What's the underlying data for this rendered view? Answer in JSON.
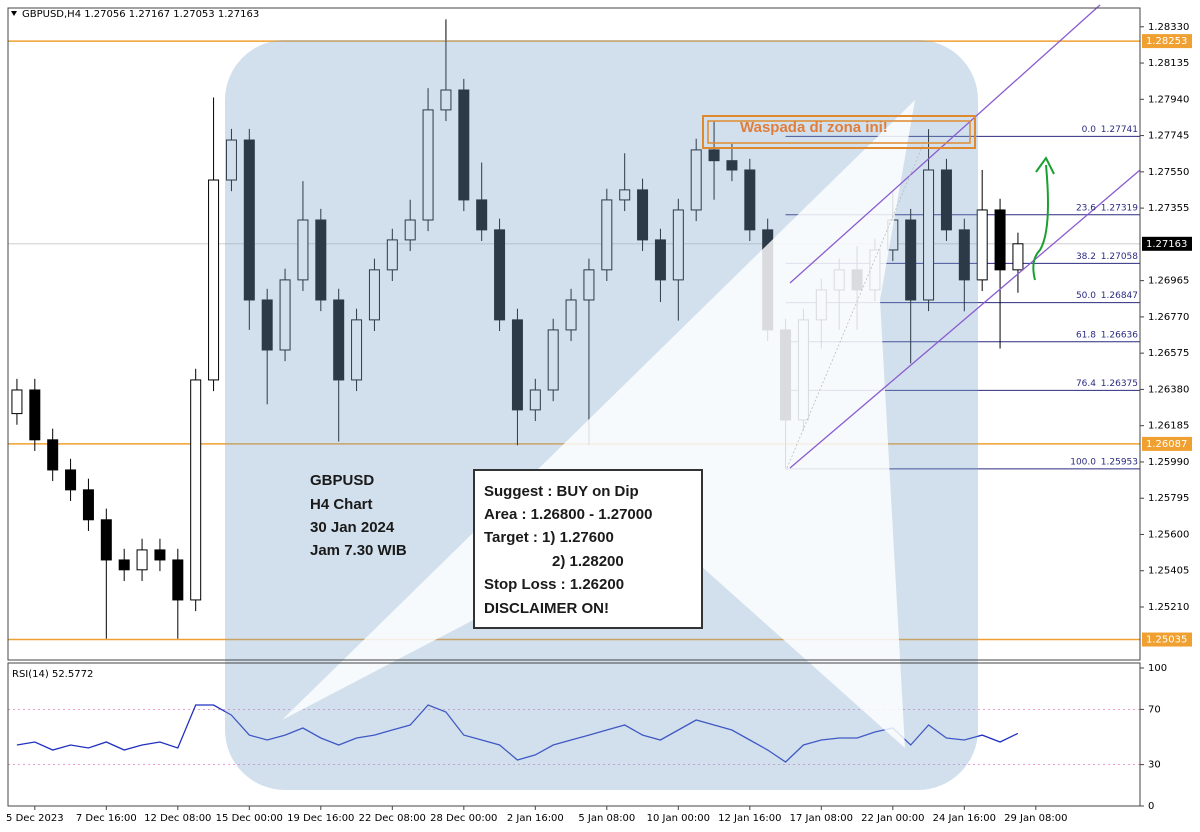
{
  "chart_data": {
    "type": "candlestick",
    "header": "GBPUSD,H4 1.27056 1.27167 1.27053 1.27163",
    "categories": [
      null,
      "5 Dec 2023",
      null,
      null,
      null,
      "7 Dec 16:00",
      null,
      null,
      null,
      "12 Dec 08:00",
      null,
      null,
      null,
      "15 Dec 00:00",
      null,
      null,
      null,
      "19 Dec 16:00",
      null,
      null,
      null,
      "22 Dec 08:00",
      null,
      null,
      null,
      "28 Dec 00:00",
      null,
      null,
      null,
      "2 Jan 16:00",
      null,
      null,
      null,
      "5 Jan 08:00",
      null,
      null,
      null,
      "10 Jan 00:00",
      null,
      null,
      null,
      "12 Jan 16:00",
      null,
      null,
      null,
      "17 Jan 08:00",
      null,
      null,
      null,
      "22 Jan 00:00",
      null,
      null,
      null,
      "24 Jan 16:00",
      null,
      null,
      null,
      "29 Jan 08:00"
    ],
    "open": [
      1.2625,
      1.26377,
      1.26109,
      1.25947,
      1.2584,
      1.25679,
      1.25463,
      1.2541,
      1.25517,
      1.25463,
      1.25248,
      1.26431,
      1.27506,
      1.27721,
      1.26861,
      1.26592,
      1.26969,
      1.27291,
      1.26861,
      1.26431,
      1.26754,
      1.27023,
      1.27184,
      1.27291,
      1.27883,
      1.2799,
      1.27399,
      1.27238,
      1.26754,
      1.2627,
      1.26377,
      1.267,
      1.26861,
      1.27023,
      1.27399,
      1.27453,
      1.27184,
      1.26969,
      1.27345,
      1.27668,
      1.2761,
      1.2756,
      1.27238,
      1.267,
      1.26216,
      1.26754,
      1.26915,
      1.27023,
      1.26915,
      1.2713,
      1.27291,
      1.26861,
      1.2756,
      1.27238,
      1.26969,
      1.27345,
      1.27023,
      null
    ],
    "high": [
      1.26437,
      1.26437,
      1.26169,
      1.26007,
      1.259,
      1.25739,
      1.25523,
      1.25577,
      1.25577,
      1.25523,
      1.26491,
      1.2795,
      1.27781,
      1.27781,
      1.26921,
      1.27029,
      1.275,
      1.27351,
      1.26921,
      1.26814,
      1.27083,
      1.27244,
      1.274,
      1.28,
      1.2837,
      1.2805,
      1.276,
      1.27298,
      1.26814,
      1.26437,
      1.2676,
      1.26921,
      1.27083,
      1.27459,
      1.2765,
      1.27513,
      1.27244,
      1.27405,
      1.27728,
      1.2782,
      1.277,
      1.2762,
      1.27298,
      1.2676,
      1.26814,
      1.26975,
      1.27083,
      1.2715,
      1.2719,
      1.2745,
      1.27351,
      1.2778,
      1.2762,
      1.27298,
      1.2756,
      1.27405,
      1.27223,
      null
    ],
    "low": [
      1.2619,
      1.26049,
      1.25887,
      1.2578,
      1.25619,
      1.2504,
      1.2535,
      1.2535,
      1.25403,
      1.2504,
      1.25188,
      1.26371,
      1.27446,
      1.267,
      1.263,
      1.26532,
      1.26909,
      1.26801,
      1.261,
      1.26371,
      1.26694,
      1.26963,
      1.27124,
      1.27231,
      1.27823,
      1.27339,
      1.27178,
      1.26694,
      1.2608,
      1.2621,
      1.26317,
      1.2664,
      1.2608,
      1.26963,
      1.27339,
      1.27124,
      1.2685,
      1.2675,
      1.27285,
      1.274,
      1.275,
      1.27178,
      1.2664,
      1.25953,
      1.26156,
      1.266,
      1.267,
      1.267,
      1.26855,
      1.2707,
      1.2652,
      1.26801,
      1.27178,
      1.268,
      1.26909,
      1.266,
      1.269,
      null
    ],
    "close": [
      1.26377,
      1.26109,
      1.25947,
      1.2584,
      1.25679,
      1.25463,
      1.2541,
      1.25517,
      1.25463,
      1.25248,
      1.26431,
      1.27506,
      1.27721,
      1.26861,
      1.26592,
      1.26969,
      1.27291,
      1.26861,
      1.26431,
      1.26754,
      1.27023,
      1.27184,
      1.27291,
      1.27883,
      1.2799,
      1.27399,
      1.27238,
      1.26754,
      1.2627,
      1.26377,
      1.267,
      1.26861,
      1.27023,
      1.27399,
      1.27453,
      1.27184,
      1.26969,
      1.27345,
      1.27668,
      1.2761,
      1.2756,
      1.27238,
      1.267,
      1.26216,
      1.26754,
      1.26915,
      1.27023,
      1.26915,
      1.2713,
      1.27291,
      1.26861,
      1.2756,
      1.27238,
      1.26969,
      1.27345,
      1.27023,
      1.27163,
      null
    ],
    "up_color": "#ffffff",
    "down_color": "#000000",
    "ylim": [
      1.24925,
      1.28431
    ],
    "yticks": [
      {
        "value": 1.2833,
        "label": "1.28330"
      },
      1.28135,
      {
        "value": 1.2794,
        "label": "1.27940"
      },
      1.27745,
      {
        "value": 1.2755,
        "label": "1.27550"
      },
      1.27355,
      1.26965,
      {
        "value": 1.2677,
        "label": "1.26770"
      },
      1.26575,
      {
        "value": 1.2638,
        "label": "1.26380"
      },
      1.26185,
      {
        "value": 1.2599,
        "label": "1.25990"
      },
      1.25795,
      {
        "value": 1.256,
        "label": "1.25600"
      },
      1.25405,
      {
        "value": 1.2521,
        "label": "1.25210"
      }
    ],
    "levels": [
      1.28253,
      1.26087,
      1.25035
    ],
    "level_color": "#f0a030",
    "current_price": 1.27163,
    "fib": {
      "ratios": [
        "0.0",
        "23.6",
        "38.2",
        "50.0",
        "61.8",
        "76.4",
        "100.0"
      ],
      "prices": [
        1.27741,
        1.27319,
        1.27058,
        1.26847,
        1.26636,
        1.26375,
        1.25953
      ],
      "color": "#2b2b80"
    },
    "annotation": "Waspada di zona ini!",
    "info": [
      "GBPUSD",
      "H4 Chart",
      "30 Jan 2024",
      "Jam 7.30 WIB"
    ],
    "suggest": [
      "Suggest : BUY on Dip",
      "Area : 1.26800 - 1.27000",
      "Target : 1) 1.27600",
      "2) 1.28200",
      "Stop Loss : 1.26200",
      "DISCLAIMER ON!"
    ],
    "rsi": {
      "label": "RSI(14) 52.5772",
      "color": "#2030c0",
      "values": [
        44.2,
        46.4,
        40.6,
        44.2,
        42.0,
        46.4,
        40.6,
        44.2,
        46.4,
        42.0,
        73.2,
        73.2,
        65.9,
        51.4,
        47.8,
        51.4,
        56.5,
        49.3,
        44.2,
        49.3,
        51.4,
        55.1,
        58.7,
        73.2,
        68.1,
        51.4,
        47.8,
        44.2,
        33.3,
        37.0,
        44.2,
        47.8,
        51.4,
        55.1,
        58.7,
        51.4,
        47.8,
        55.1,
        62.3,
        58.7,
        55.1,
        47.8,
        40.6,
        31.9,
        44.2,
        47.8,
        49.3,
        49.3,
        53.6,
        56.5,
        44.2,
        58.7,
        49.3,
        47.8,
        51.4,
        46.4,
        52.58,
        null
      ],
      "ylim": [
        0,
        100
      ],
      "yticks": [
        100,
        70,
        30,
        0
      ]
    }
  }
}
